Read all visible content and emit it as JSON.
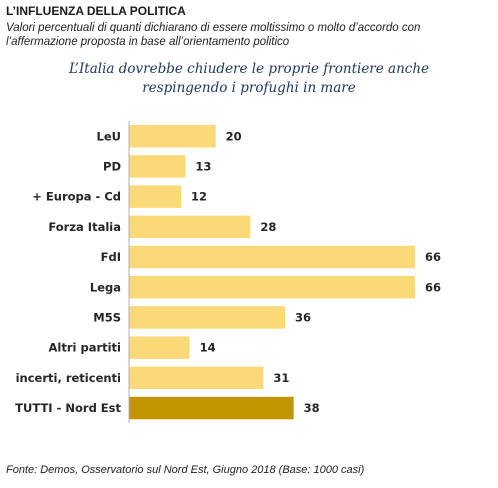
{
  "header": {
    "title": "L’INFLUENZA DELLA POLITICA",
    "subtitle_line1": "Valori percentuali di quanti dichiarano di essere moltissimo o molto d’accordo con",
    "subtitle_line2": "l’affermazione proposta in base all’orientamento politico"
  },
  "chart_data": {
    "type": "bar",
    "orientation": "horizontal",
    "title_line1": "L’Italia dovrebbe chiudere le proprie frontiere anche",
    "title_line2": "respingendo i profughi in mare",
    "categories": [
      "LeU",
      "PD",
      "+ Europa - Cd",
      "Forza Italia",
      "FdI",
      "Lega",
      "M5S",
      "Altri partiti",
      "incerti, reticenti",
      "TUTTI - Nord Est"
    ],
    "values": [
      20,
      13,
      12,
      28,
      66,
      66,
      36,
      14,
      31,
      38
    ],
    "data_labels": [
      "20",
      "13",
      "12",
      "28",
      "66",
      "66",
      "36",
      "14",
      "31",
      "38"
    ],
    "xlim": [
      0,
      70
    ],
    "grid": false,
    "legend": "none",
    "colors": {
      "bar": "#fcd978",
      "highlight_bar": "#c19400",
      "axis": "#b0b0b0"
    },
    "highlight_category": "TUTTI - Nord Est"
  },
  "footer": {
    "source": "Fonte: Demos, Osservatorio sul Nord Est, Giugno  2018 (Base: 1000 casi)"
  }
}
